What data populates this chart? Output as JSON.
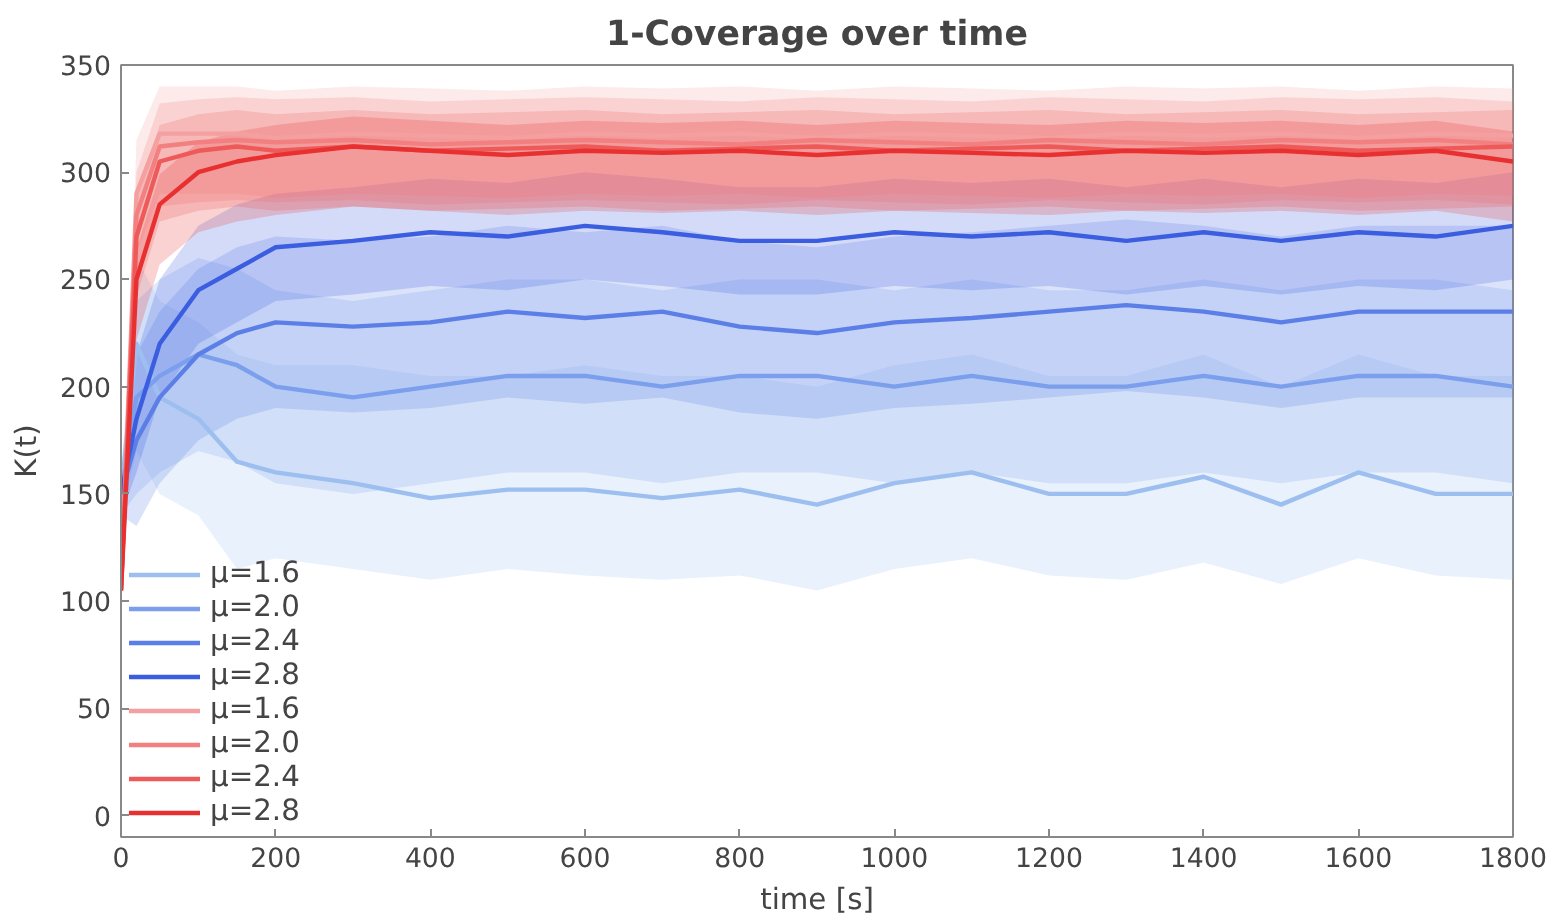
{
  "chart_data": {
    "type": "line",
    "title": "1-Coverage over time",
    "xlabel": "time [s]",
    "ylabel": "K(t)",
    "x": [
      0,
      20,
      50,
      100,
      150,
      200,
      300,
      400,
      500,
      600,
      700,
      800,
      900,
      1000,
      1100,
      1200,
      1300,
      1400,
      1500,
      1600,
      1700,
      1800
    ],
    "xlim": [
      0,
      1800
    ],
    "xticks": [
      0,
      200,
      400,
      600,
      800,
      1000,
      1200,
      1400,
      1600,
      1800
    ],
    "ylim": [
      -10,
      350
    ],
    "yticks": [
      0,
      50,
      100,
      150,
      200,
      250,
      300,
      350
    ],
    "grid": false,
    "legend": "bottom left",
    "marker": "none",
    "line_style": "solid",
    "series": [
      {
        "name": "μ=1.6",
        "color": "#9dbff0",
        "values": [
          150,
          220,
          195,
          185,
          165,
          160,
          155,
          148,
          152,
          152,
          148,
          152,
          145,
          155,
          160,
          150,
          150,
          158,
          145,
          160,
          150,
          150
        ],
        "lower": [
          140,
          170,
          150,
          140,
          115,
          120,
          115,
          110,
          115,
          112,
          110,
          112,
          105,
          115,
          120,
          112,
          110,
          118,
          108,
          120,
          112,
          110
        ],
        "upper": [
          160,
          260,
          240,
          230,
          215,
          210,
          210,
          205,
          205,
          210,
          205,
          205,
          200,
          210,
          215,
          205,
          205,
          215,
          200,
          215,
          205,
          205
        ]
      },
      {
        "name": "μ=2.0",
        "color": "#7b9fec",
        "values": [
          150,
          195,
          205,
          215,
          210,
          200,
          195,
          200,
          205,
          205,
          200,
          205,
          205,
          200,
          205,
          200,
          200,
          205,
          200,
          205,
          205,
          200
        ],
        "lower": [
          140,
          150,
          160,
          170,
          165,
          155,
          150,
          155,
          160,
          160,
          155,
          160,
          160,
          155,
          160,
          155,
          155,
          160,
          155,
          160,
          160,
          155
        ],
        "upper": [
          160,
          240,
          250,
          260,
          255,
          245,
          240,
          245,
          250,
          250,
          245,
          250,
          250,
          245,
          250,
          245,
          245,
          250,
          245,
          250,
          250,
          245
        ]
      },
      {
        "name": "μ=2.4",
        "color": "#5b7fe6",
        "values": [
          150,
          175,
          195,
          215,
          225,
          230,
          228,
          230,
          235,
          232,
          235,
          228,
          225,
          230,
          232,
          235,
          238,
          235,
          230,
          235,
          235,
          235
        ],
        "lower": [
          140,
          135,
          155,
          175,
          185,
          190,
          188,
          190,
          195,
          192,
          195,
          188,
          185,
          190,
          192,
          195,
          198,
          195,
          190,
          195,
          195,
          195
        ],
        "upper": [
          160,
          215,
          235,
          255,
          265,
          270,
          268,
          270,
          275,
          272,
          275,
          268,
          265,
          270,
          272,
          275,
          278,
          275,
          270,
          275,
          275,
          275
        ]
      },
      {
        "name": "μ=2.8",
        "color": "#3b5de0",
        "values": [
          150,
          185,
          220,
          245,
          255,
          265,
          268,
          272,
          270,
          275,
          272,
          268,
          268,
          272,
          270,
          272,
          268,
          272,
          268,
          272,
          270,
          275
        ],
        "lower": [
          140,
          160,
          195,
          220,
          230,
          240,
          243,
          247,
          245,
          250,
          247,
          243,
          243,
          247,
          245,
          247,
          243,
          247,
          243,
          247,
          245,
          250
        ],
        "upper": [
          160,
          215,
          250,
          275,
          285,
          290,
          293,
          297,
          295,
          300,
          297,
          293,
          293,
          297,
          295,
          297,
          293,
          297,
          293,
          297,
          295,
          300
        ]
      },
      {
        "name": "μ=1.6",
        "color": "#f4a0a0",
        "values": [
          105,
          290,
          318,
          318,
          318,
          316,
          318,
          317,
          316,
          318,
          317,
          318,
          316,
          318,
          317,
          316,
          318,
          317,
          318,
          316,
          318,
          317
        ],
        "lower": [
          105,
          262,
          290,
          290,
          290,
          288,
          290,
          289,
          288,
          290,
          289,
          290,
          288,
          290,
          289,
          288,
          290,
          289,
          290,
          288,
          290,
          289
        ],
        "upper": [
          105,
          315,
          340,
          340,
          340,
          338,
          340,
          339,
          338,
          340,
          339,
          340,
          338,
          340,
          339,
          338,
          340,
          339,
          340,
          338,
          340,
          339
        ]
      },
      {
        "name": "μ=2.0",
        "color": "#f28080",
        "values": [
          105,
          280,
          312,
          314,
          315,
          314,
          315,
          313,
          314,
          315,
          314,
          313,
          315,
          314,
          313,
          315,
          314,
          313,
          315,
          314,
          315,
          313
        ],
        "lower": [
          105,
          252,
          284,
          286,
          287,
          286,
          287,
          285,
          286,
          287,
          286,
          285,
          287,
          286,
          285,
          287,
          286,
          285,
          287,
          286,
          287,
          285
        ],
        "upper": [
          105,
          300,
          332,
          334,
          335,
          334,
          335,
          333,
          334,
          335,
          334,
          333,
          335,
          334,
          333,
          335,
          334,
          333,
          335,
          334,
          335,
          333
        ]
      },
      {
        "name": "μ=2.4",
        "color": "#ee5a5a",
        "values": [
          105,
          270,
          305,
          310,
          312,
          310,
          312,
          310,
          311,
          312,
          310,
          311,
          312,
          310,
          311,
          312,
          310,
          311,
          312,
          310,
          311,
          312
        ],
        "lower": [
          105,
          242,
          277,
          282,
          284,
          282,
          284,
          282,
          283,
          284,
          282,
          283,
          284,
          282,
          283,
          284,
          282,
          283,
          284,
          282,
          283,
          284
        ],
        "upper": [
          105,
          287,
          322,
          327,
          329,
          327,
          329,
          327,
          328,
          329,
          327,
          328,
          329,
          327,
          328,
          329,
          327,
          328,
          329,
          327,
          328,
          329
        ]
      },
      {
        "name": "μ=2.8",
        "color": "#e83030",
        "values": [
          105,
          250,
          285,
          300,
          305,
          308,
          312,
          310,
          308,
          310,
          309,
          310,
          308,
          310,
          309,
          308,
          310,
          309,
          310,
          308,
          310,
          305
        ],
        "lower": [
          105,
          222,
          257,
          272,
          277,
          280,
          284,
          282,
          280,
          282,
          281,
          282,
          280,
          282,
          281,
          280,
          282,
          281,
          282,
          280,
          282,
          277
        ],
        "upper": [
          105,
          264,
          299,
          314,
          319,
          322,
          326,
          324,
          322,
          324,
          323,
          324,
          322,
          324,
          323,
          322,
          324,
          323,
          324,
          322,
          324,
          319
        ]
      }
    ]
  }
}
